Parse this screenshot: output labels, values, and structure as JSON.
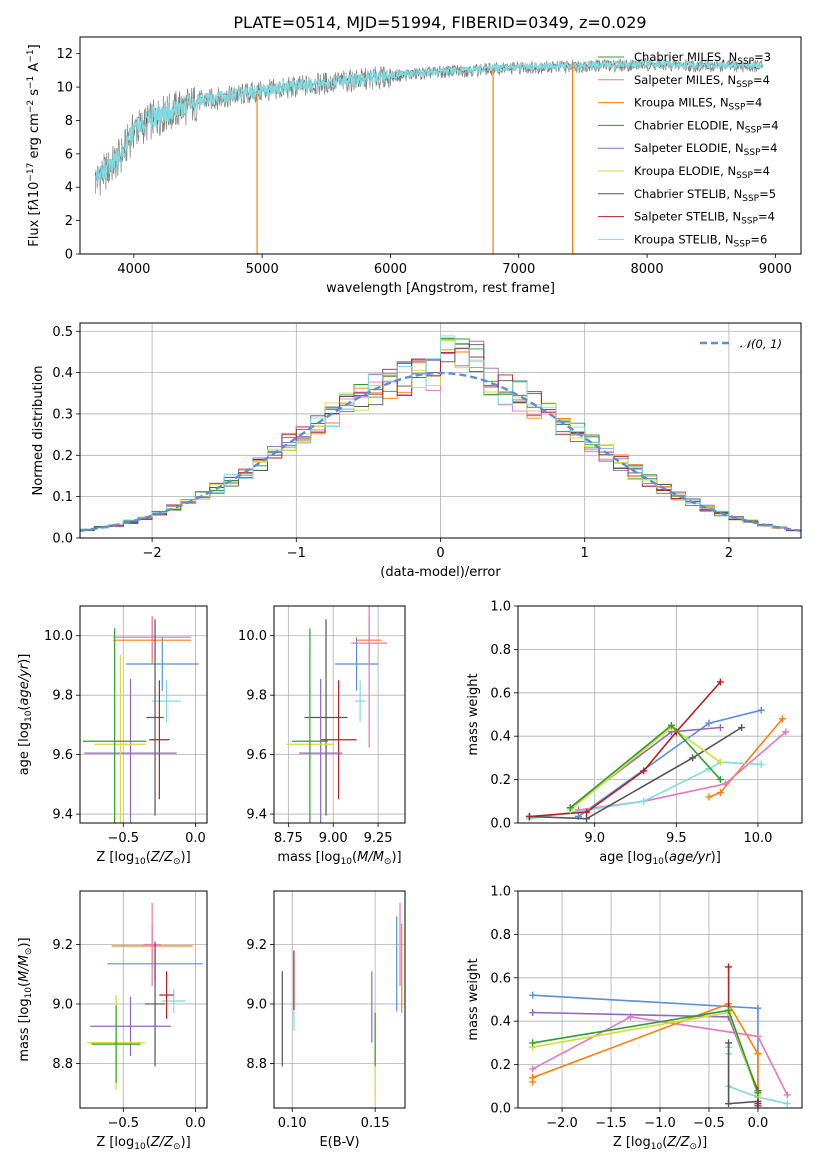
{
  "chart_data": [
    {
      "type": "line",
      "title": "PLATE=0514, MJD=51994, FIBERID=0349, z=0.029",
      "xlabel": "wavelength [Angstrom, rest frame]",
      "ylabel": "Flux [f_λ10^-17 erg cm^-2 s^-1 A^-1]",
      "xlim": [
        3580,
        9200
      ],
      "ylim": [
        0,
        13
      ],
      "xticks": [
        4000,
        5000,
        6000,
        7000,
        8000,
        9000
      ],
      "yticks": [
        0,
        2,
        4,
        6,
        8,
        10,
        12
      ],
      "grid": false,
      "legend_position": "top-right",
      "series": [
        {
          "name": "Chabrier MILES, N_SSP=3",
          "color": "#2ca02c"
        },
        {
          "name": "Salpeter MILES, N_SSP=4",
          "color": "#e377c2"
        },
        {
          "name": "Kroupa MILES, N_SSP=4",
          "color": "#ff7f0e"
        },
        {
          "name": "Chabrier ELODIE, N_SSP=4",
          "color": "#2e8b57"
        },
        {
          "name": "Salpeter ELODIE, N_SSP=4",
          "color": "#9467bd"
        },
        {
          "name": "Kroupa ELODIE, N_SSP=4",
          "color": "#dada3a"
        },
        {
          "name": "Chabrier STELIB, N_SSP=5",
          "color": "#555555"
        },
        {
          "name": "Salpeter STELIB, N_SSP=4",
          "color": "#b22222"
        },
        {
          "name": "Kroupa STELIB, N_SSP=6",
          "color": "#7fdbe0"
        }
      ],
      "data_color": "#808080",
      "continuum": {
        "x": [
          3700,
          3800,
          3900,
          4000,
          4200,
          4500,
          5000,
          5500,
          6000,
          6500,
          7000,
          7500,
          8000,
          8500,
          8900
        ],
        "y": [
          4.5,
          5.2,
          6.0,
          7.5,
          8.4,
          9.2,
          9.8,
          10.3,
          10.7,
          11.0,
          11.2,
          11.3,
          11.4,
          11.3,
          11.3
        ]
      }
    },
    {
      "type": "histogram",
      "xlabel": "(data-model)/error",
      "ylabel": "Normed distribution",
      "xlim": [
        -2.5,
        2.5
      ],
      "ylim": [
        0,
        0.52
      ],
      "xticks": [
        -2,
        -1,
        0,
        1,
        2
      ],
      "yticks": [
        0.0,
        0.1,
        0.2,
        0.3,
        0.4,
        0.5
      ],
      "grid": true,
      "legend": {
        "label": "N(0,1)",
        "position": "top-right",
        "color": "#5b8fd9"
      },
      "model": {
        "mean": 0,
        "sigma": 1
      },
      "bin_width": 0.1
    },
    {
      "type": "errorbar",
      "xlabel": "Z [log10(Z/Z⊙)]",
      "ylabel": "age [log10(age/yr)]",
      "xlim": [
        -0.8,
        0.08
      ],
      "ylim": [
        9.37,
        10.1
      ],
      "xticks": [
        -0.5,
        0.0
      ],
      "yticks": [
        9.4,
        9.6,
        9.8,
        10.0
      ],
      "grid": true,
      "points": [
        {
          "color": "#5b8fd9",
          "x": -0.23,
          "xerr": 0.25,
          "y": 9.905,
          "yerr": 0.09
        },
        {
          "color": "#ff7f0e",
          "x": -0.3,
          "xerr": 0.27,
          "y": 9.985,
          "yerr": 0.08
        },
        {
          "color": "#e377c2",
          "x": -0.3,
          "xerr": 0.27,
          "y": 9.995,
          "yerr": 0.07
        },
        {
          "color": "#7fdbe0",
          "x": -0.2,
          "xerr": 0.1,
          "y": 9.78,
          "yerr": 0.07
        },
        {
          "color": "#555555",
          "x": -0.28,
          "xerr": 0.06,
          "y": 9.725,
          "yerr": 0.33
        },
        {
          "color": "#b22222",
          "x": -0.25,
          "xerr": 0.07,
          "y": 9.65,
          "yerr": 0.2
        },
        {
          "color": "#9467bd",
          "x": -0.45,
          "xerr": 0.32,
          "y": 9.605,
          "yerr": 0.25
        },
        {
          "color": "#dada3a",
          "x": -0.52,
          "xerr": 0.18,
          "y": 9.635,
          "yerr": 0.3
        },
        {
          "color": "#2ca02c",
          "x": -0.56,
          "xerr": 0.22,
          "y": 9.645,
          "yerr": 0.38
        }
      ]
    },
    {
      "type": "errorbar",
      "xlabel": "mass [log10(M/M⊙)]",
      "ylabel": "",
      "xlim": [
        8.67,
        9.4
      ],
      "ylim": [
        9.37,
        10.1
      ],
      "xticks": [
        8.75,
        9.0,
        9.25
      ],
      "yticks": [
        9.4,
        9.6,
        9.8,
        10.0
      ],
      "grid": true,
      "points": [
        {
          "color": "#5b8fd9",
          "x": 9.13,
          "xerr": 0.12,
          "y": 9.905,
          "yerr": 0.09
        },
        {
          "color": "#ff7f0e",
          "x": 9.2,
          "xerr": 0.07,
          "y": 9.985,
          "yerr": 0.08
        },
        {
          "color": "#e377c2",
          "x": 9.2,
          "xerr": 0.1,
          "y": 9.975,
          "yerr": 0.35
        },
        {
          "color": "#7fdbe0",
          "x": 9.15,
          "xerr": 0.03,
          "y": 9.78,
          "yerr": 0.07
        },
        {
          "color": "#555555",
          "x": 8.96,
          "xerr": 0.12,
          "y": 9.725,
          "yerr": 0.33
        },
        {
          "color": "#b22222",
          "x": 9.03,
          "xerr": 0.1,
          "y": 9.65,
          "yerr": 0.2
        },
        {
          "color": "#9467bd",
          "x": 8.93,
          "xerr": 0.12,
          "y": 9.605,
          "yerr": 0.25
        },
        {
          "color": "#dada3a",
          "x": 8.87,
          "xerr": 0.13,
          "y": 9.635,
          "yerr": 0.3
        },
        {
          "color": "#2ca02c",
          "x": 8.87,
          "xerr": 0.1,
          "y": 9.645,
          "yerr": 0.38
        }
      ]
    },
    {
      "type": "line",
      "xlabel": "age [log10(age/yr)]",
      "ylabel": "mass weight",
      "xlim": [
        8.53,
        10.27
      ],
      "ylim": [
        0,
        1.0
      ],
      "xticks": [
        9.0,
        9.5,
        10.0
      ],
      "yticks": [
        0.0,
        0.2,
        0.4,
        0.6,
        0.8,
        1.0
      ],
      "grid": true,
      "series": [
        {
          "color": "#5b8fd9",
          "x": [
            8.9,
            9.7,
            10.02
          ],
          "y": [
            0.03,
            0.46,
            0.52
          ]
        },
        {
          "color": "#ff7f0e",
          "x": [
            9.7,
            9.77,
            10.15
          ],
          "y": [
            0.12,
            0.14,
            0.48
          ]
        },
        {
          "color": "#e377c2",
          "x": [
            8.9,
            9.3,
            9.8,
            10.17
          ],
          "y": [
            0.06,
            0.1,
            0.18,
            0.42
          ]
        },
        {
          "color": "#7fdbe0",
          "x": [
            8.6,
            9.3,
            9.7,
            9.77,
            10.02
          ],
          "y": [
            0.02,
            0.1,
            0.25,
            0.28,
            0.27
          ]
        },
        {
          "color": "#555555",
          "x": [
            8.6,
            8.95,
            9.6,
            9.9
          ],
          "y": [
            0.03,
            0.02,
            0.3,
            0.44
          ]
        },
        {
          "color": "#b22222",
          "x": [
            8.6,
            8.95,
            9.3,
            9.5,
            9.77
          ],
          "y": [
            0.03,
            0.05,
            0.24,
            0.42,
            0.65
          ]
        },
        {
          "color": "#9467bd",
          "x": [
            8.85,
            9.47,
            9.77
          ],
          "y": [
            0.07,
            0.42,
            0.44
          ]
        },
        {
          "color": "#dada3a",
          "x": [
            8.85,
            9.47,
            9.77
          ],
          "y": [
            0.06,
            0.44,
            0.28
          ]
        },
        {
          "color": "#2ca02c",
          "x": [
            8.85,
            9.47,
            9.77
          ],
          "y": [
            0.07,
            0.45,
            0.2
          ]
        }
      ]
    },
    {
      "type": "errorbar",
      "xlabel": "Z [log10(Z/Z⊙)]",
      "ylabel": "mass [log10(M/M⊙)]",
      "xlim": [
        -0.8,
        0.08
      ],
      "ylim": [
        8.65,
        9.38
      ],
      "xticks": [
        -0.5,
        0.0
      ],
      "yticks": [
        8.8,
        9.0,
        9.2
      ],
      "grid": true,
      "points": [
        {
          "color": "#5b8fd9",
          "x": -0.28,
          "xerr": 0.33,
          "y": 9.135,
          "yerr": 0.06
        },
        {
          "color": "#ff7f0e",
          "x": -0.3,
          "xerr": 0.28,
          "y": 9.195,
          "yerr": 0.07
        },
        {
          "color": "#e377c2",
          "x": -0.3,
          "xerr": 0.06,
          "y": 9.2,
          "yerr": 0.14
        },
        {
          "color": "#7fdbe0",
          "x": -0.15,
          "xerr": 0.08,
          "y": 9.01,
          "yerr": 0.04
        },
        {
          "color": "#555555",
          "x": -0.28,
          "xerr": 0.07,
          "y": 9.0,
          "yerr": 0.21
        },
        {
          "color": "#b22222",
          "x": -0.2,
          "xerr": 0.05,
          "y": 9.03,
          "yerr": 0.08
        },
        {
          "color": "#9467bd",
          "x": -0.45,
          "xerr": 0.28,
          "y": 8.925,
          "yerr": 0.1
        },
        {
          "color": "#dada3a",
          "x": -0.55,
          "xerr": 0.2,
          "y": 8.87,
          "yerr": 0.16
        },
        {
          "color": "#2ca02c",
          "x": -0.55,
          "xerr": 0.17,
          "y": 8.865,
          "yerr": 0.13
        }
      ]
    },
    {
      "type": "errorbar",
      "xlabel": "E(B-V)",
      "ylabel": "",
      "xlim": [
        0.089,
        0.168
      ],
      "ylim": [
        8.65,
        9.38
      ],
      "xticks": [
        0.1,
        0.15
      ],
      "yticks": [
        8.8,
        9.0,
        9.2
      ],
      "grid": true,
      "points": [
        {
          "color": "#5b8fd9",
          "x": 0.163,
          "y": 9.135,
          "yerr": 0.16
        },
        {
          "color": "#ff7f0e",
          "x": 0.166,
          "y": 9.12,
          "yerr": 0.15
        },
        {
          "color": "#e377c2",
          "x": 0.165,
          "y": 9.2,
          "yerr": 0.14
        },
        {
          "color": "#7fdbe0",
          "x": 0.101,
          "y": 9.03,
          "yerr": 0.12
        },
        {
          "color": "#555555",
          "x": 0.094,
          "y": 8.95,
          "yerr": 0.16
        },
        {
          "color": "#b22222",
          "x": 0.101,
          "y": 9.08,
          "yerr": 0.1
        },
        {
          "color": "#9467bd",
          "x": 0.148,
          "y": 8.99,
          "yerr": 0.12
        },
        {
          "color": "#dada3a",
          "x": 0.15,
          "y": 8.82,
          "yerr": 0.15
        },
        {
          "color": "#2ca02c",
          "x": 0.15,
          "y": 8.88,
          "yerr": 0.09
        }
      ]
    },
    {
      "type": "line",
      "xlabel": "Z [log10(Z/Z⊙)]",
      "ylabel": "mass weight",
      "xlim": [
        -2.45,
        0.45
      ],
      "ylim": [
        0,
        1.0
      ],
      "xticks": [
        -2.0,
        -1.5,
        -1.0,
        -0.5,
        0.0
      ],
      "yticks": [
        0.0,
        0.2,
        0.4,
        0.6,
        0.8,
        1.0
      ],
      "grid": true,
      "series": [
        {
          "color": "#5b8fd9",
          "x": [
            -2.3,
            0.0,
            0.0
          ],
          "y": [
            0.52,
            0.46,
            0.03
          ]
        },
        {
          "color": "#ff7f0e",
          "x": [
            -2.3,
            -2.3,
            -0.3,
            0.0,
            0.0
          ],
          "y": [
            0.12,
            0.14,
            0.48,
            0.25,
            0.05
          ]
        },
        {
          "color": "#e377c2",
          "x": [
            -2.3,
            -1.3,
            0.0,
            0.3
          ],
          "y": [
            0.18,
            0.42,
            0.33,
            0.06
          ]
        },
        {
          "color": "#7fdbe0",
          "x": [
            -0.3,
            -0.3,
            -0.3,
            0.0,
            0.3
          ],
          "y": [
            0.28,
            0.25,
            0.1,
            0.05,
            0.02
          ]
        },
        {
          "color": "#555555",
          "x": [
            -0.3,
            -0.3,
            0.0,
            0.0
          ],
          "y": [
            0.3,
            0.02,
            0.03,
            0.01
          ]
        },
        {
          "color": "#b22222",
          "x": [
            -0.3,
            -0.3,
            0.0,
            0.0
          ],
          "y": [
            0.65,
            0.42,
            0.08,
            0.02
          ]
        },
        {
          "color": "#9467bd",
          "x": [
            -2.3,
            -0.3,
            0.0
          ],
          "y": [
            0.44,
            0.42,
            0.07
          ]
        },
        {
          "color": "#dada3a",
          "x": [
            -2.3,
            -0.3,
            0.0
          ],
          "y": [
            0.28,
            0.44,
            0.06
          ]
        },
        {
          "color": "#2ca02c",
          "x": [
            -2.3,
            -0.3,
            0.0
          ],
          "y": [
            0.3,
            0.45,
            0.07
          ]
        }
      ]
    }
  ]
}
